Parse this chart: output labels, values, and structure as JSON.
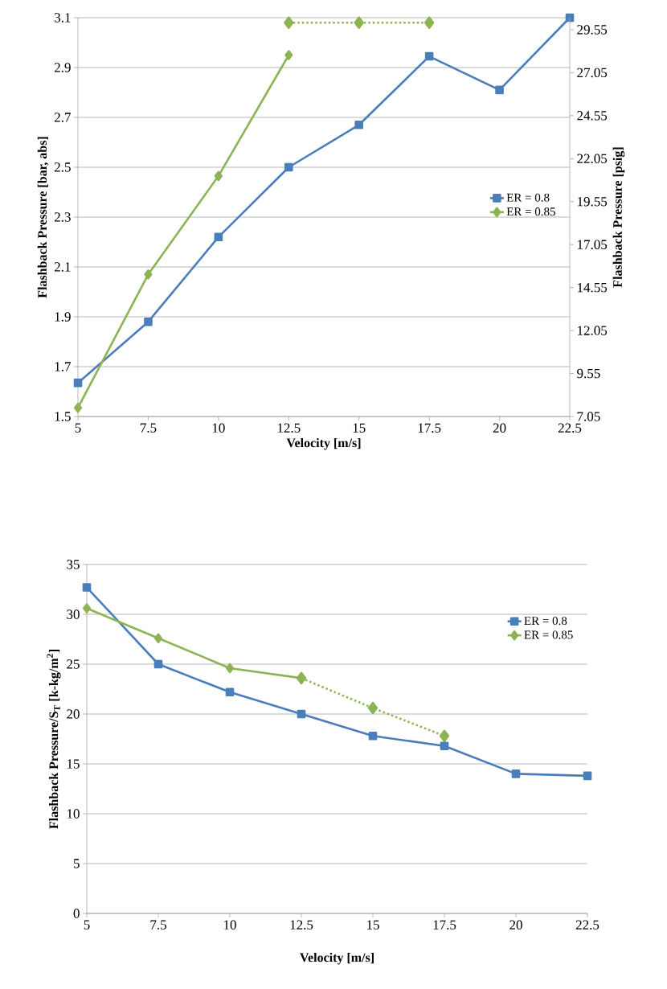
{
  "chart_data": [
    {
      "type": "line",
      "xlabel": "Velocity [m/s]",
      "ylabel": "Flashback Pressure [bar, abs]",
      "y2label": "Flashback Pressure [psig]",
      "x": [
        5,
        7.5,
        10,
        12.5,
        15,
        17.5,
        20,
        22.5
      ],
      "xlim": [
        5,
        22.5
      ],
      "xticks": [
        5,
        7.5,
        10,
        12.5,
        15,
        17.5,
        20,
        22.5
      ],
      "ylim": [
        1.5,
        3.1
      ],
      "yticks": [
        1.5,
        1.7,
        1.9,
        2.1,
        2.3,
        2.5,
        2.7,
        2.9,
        3.1
      ],
      "y2lim": [
        7.05,
        30.25
      ],
      "y2ticks": [
        7.05,
        9.55,
        12.05,
        14.55,
        17.05,
        19.55,
        22.05,
        24.55,
        27.05,
        29.55
      ],
      "grid": "y",
      "legend": "right",
      "series": [
        {
          "name": "ER = 0.8",
          "color": "#4a7ebb",
          "marker": "square",
          "line_style": "solid",
          "values": [
            1.635,
            1.88,
            2.22,
            2.5,
            2.67,
            2.945,
            2.81,
            3.1
          ]
        },
        {
          "name": "ER = 0.85",
          "color": "#8cb454",
          "marker": "diamond",
          "line_style": "solid",
          "x": [
            5,
            7.5,
            10,
            12.5
          ],
          "values": [
            1.535,
            2.07,
            2.465,
            2.95
          ]
        },
        {
          "color": "#8cb454",
          "marker": "diamond",
          "line_style": "dotted",
          "x": [
            12.5,
            15,
            17.5
          ],
          "values": [
            3.08,
            3.08,
            3.08
          ]
        }
      ]
    },
    {
      "type": "line",
      "xlabel": "Velocity [m/s]",
      "ylabel": "Flashback Pressure/S$_{T}$ [k-kg/m$^{2}$]",
      "x": [
        5,
        7.5,
        10,
        12.5,
        15,
        17.5,
        20,
        22.5
      ],
      "xlim": [
        5,
        22.5
      ],
      "xticks": [
        5,
        7.5,
        10,
        12.5,
        15,
        17.5,
        20,
        22.5
      ],
      "ylim": [
        0,
        35
      ],
      "yticks": [
        0,
        5,
        10,
        15,
        20,
        25,
        30,
        35
      ],
      "grid": "y",
      "legend": "top right",
      "series": [
        {
          "name": "ER = 0.8",
          "color": "#4a7ebb",
          "marker": "square",
          "line_style": "solid",
          "values": [
            32.7,
            25.0,
            22.2,
            20.0,
            17.8,
            16.8,
            14.0,
            13.8
          ]
        },
        {
          "name": "ER = 0.85",
          "color": "#8cb454",
          "marker": "diamond",
          "line_style": "solid",
          "x": [
            5,
            7.5,
            10,
            12.5
          ],
          "values": [
            30.6,
            27.6,
            24.6,
            23.6
          ]
        },
        {
          "color": "#8cb454",
          "marker": "diamond",
          "line_style": "dotted",
          "x": [
            12.5,
            15,
            17.5
          ],
          "values": [
            23.6,
            20.6,
            17.8
          ]
        }
      ]
    }
  ]
}
